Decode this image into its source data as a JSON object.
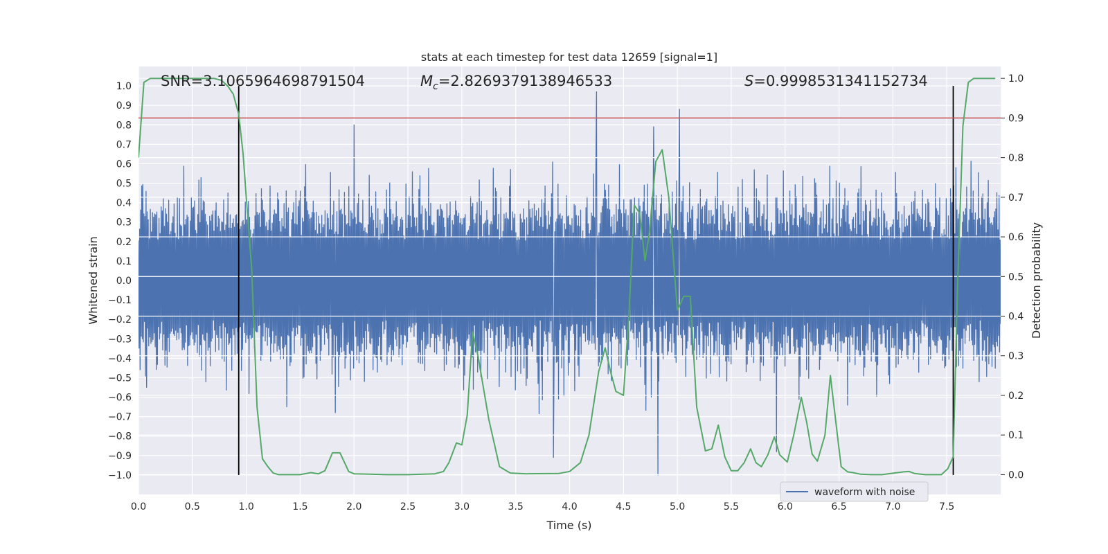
{
  "chart_data": {
    "type": "line",
    "title": "stats at each timestep for test data 12659 [signal=1]",
    "xlabel": "Time (s)",
    "ylabel_left": "Whitened strain",
    "ylabel_right": "Detection probability",
    "xlim": [
      0.0,
      8.0
    ],
    "ylim_left": [
      -1.1,
      1.1
    ],
    "ylim_right": [
      -0.05,
      1.03
    ],
    "x_ticks": [
      0.0,
      0.5,
      1.0,
      1.5,
      2.0,
      2.5,
      3.0,
      3.5,
      4.0,
      4.5,
      5.0,
      5.5,
      6.0,
      6.5,
      7.0,
      7.5
    ],
    "x_tick_labels": [
      "0.0",
      "0.5",
      "1.0",
      "1.5",
      "2.0",
      "2.5",
      "3.0",
      "3.5",
      "4.0",
      "4.5",
      "5.0",
      "5.5",
      "6.0",
      "6.5",
      "7.0",
      "7.5"
    ],
    "left_ticks": [
      1.0,
      0.9,
      0.8,
      0.7,
      0.6,
      0.5,
      0.4,
      0.3,
      0.2,
      0.1,
      0.0,
      -0.1,
      -0.2,
      -0.3,
      -0.4,
      -0.5,
      -0.6,
      -0.7,
      -0.8,
      -0.9,
      -1.0
    ],
    "left_tick_labels": [
      "1.0",
      "0.9",
      "0.8",
      "0.7",
      "0.6",
      "0.5",
      "0.4",
      "0.3",
      "0.2",
      "0.1",
      "0.0",
      "−0.1",
      "−0.2",
      "−0.3",
      "−0.4",
      "−0.5",
      "−0.6",
      "−0.7",
      "−0.8",
      "−0.9",
      "−1.0"
    ],
    "right_ticks": [
      1.0,
      0.9,
      0.8,
      0.7,
      0.6,
      0.5,
      0.4,
      0.3,
      0.2,
      0.1,
      0.0
    ],
    "right_tick_labels": [
      "1.0",
      "0.9",
      "0.8",
      "0.7",
      "0.6",
      "0.5",
      "0.4",
      "0.3",
      "0.2",
      "0.1",
      "0.0"
    ],
    "annotations": {
      "snr": "SNR=3.1065964698791504",
      "mc_symbol": "M",
      "mc_subscript": "c",
      "mc_value": "=2.8269379138946533",
      "s_symbol": "S",
      "s_value": "=0.9998531341152734"
    },
    "legend": {
      "label": "waveform with noise",
      "position": "lower-right"
    },
    "threshold": {
      "axis": "right",
      "value": 0.9,
      "color": "#c44e52"
    },
    "vlines": [
      {
        "x": 0.93,
        "y_from": -1.0,
        "y_to": 1.0
      },
      {
        "x": 7.56,
        "y_from": -1.0,
        "y_to": 1.0
      }
    ],
    "waveform": {
      "name": "waveform with noise",
      "color": "#4c72b0",
      "n_samples": 1600,
      "base_amplitude": 0.37,
      "notable_spikes": [
        {
          "x": 2.0,
          "y": 0.8
        },
        {
          "x": 4.25,
          "y": 0.97
        },
        {
          "x": 4.78,
          "y": 0.79
        },
        {
          "x": 5.02,
          "y": 0.88
        },
        {
          "x": 4.82,
          "y": -1.0
        },
        {
          "x": 3.85,
          "y": -0.91
        },
        {
          "x": 5.92,
          "y": -0.88
        }
      ]
    },
    "probability": {
      "name": "detection probability",
      "color": "#55a868",
      "x": [
        0.0,
        0.05,
        0.11,
        0.2,
        0.5,
        0.7,
        0.77,
        0.83,
        0.88,
        0.93,
        0.97,
        1.0,
        1.05,
        1.1,
        1.15,
        1.2,
        1.25,
        1.3,
        1.5,
        1.6,
        1.67,
        1.73,
        1.8,
        1.87,
        1.95,
        2.0,
        2.15,
        2.3,
        2.5,
        2.75,
        2.83,
        2.88,
        2.95,
        3.0,
        3.05,
        3.1,
        3.15,
        3.25,
        3.35,
        3.45,
        3.6,
        3.9,
        4.0,
        4.1,
        4.18,
        4.27,
        4.33,
        4.38,
        4.43,
        4.5,
        4.55,
        4.6,
        4.65,
        4.7,
        4.74,
        4.8,
        4.86,
        4.92,
        5.0,
        5.06,
        5.12,
        5.18,
        5.26,
        5.32,
        5.38,
        5.44,
        5.5,
        5.56,
        5.62,
        5.68,
        5.73,
        5.78,
        5.84,
        5.9,
        5.95,
        6.02,
        6.08,
        6.15,
        6.2,
        6.25,
        6.3,
        6.37,
        6.42,
        6.48,
        6.52,
        6.58,
        6.63,
        6.7,
        6.8,
        6.9,
        7.1,
        7.15,
        7.2,
        7.3,
        7.45,
        7.51,
        7.56,
        7.6,
        7.65,
        7.7,
        7.75,
        7.8,
        7.95
      ],
      "y": [
        0.8,
        0.99,
        1.0,
        1.0,
        1.0,
        1.0,
        0.995,
        0.98,
        0.96,
        0.91,
        0.81,
        0.7,
        0.52,
        0.17,
        0.04,
        0.02,
        0.004,
        0.0,
        0.0,
        0.005,
        0.002,
        0.01,
        0.055,
        0.055,
        0.008,
        0.002,
        0.001,
        0.0,
        0.0,
        0.002,
        0.008,
        0.03,
        0.08,
        0.075,
        0.15,
        0.36,
        0.3,
        0.14,
        0.02,
        0.004,
        0.002,
        0.003,
        0.008,
        0.03,
        0.1,
        0.26,
        0.32,
        0.26,
        0.21,
        0.2,
        0.4,
        0.68,
        0.66,
        0.54,
        0.61,
        0.79,
        0.82,
        0.7,
        0.415,
        0.45,
        0.45,
        0.17,
        0.06,
        0.065,
        0.125,
        0.045,
        0.01,
        0.01,
        0.03,
        0.065,
        0.03,
        0.02,
        0.05,
        0.095,
        0.05,
        0.032,
        0.1,
        0.195,
        0.132,
        0.052,
        0.034,
        0.1,
        0.25,
        0.11,
        0.02,
        0.007,
        0.005,
        0.001,
        0.0,
        0.0,
        0.007,
        0.008,
        0.003,
        0.0,
        0.0,
        0.015,
        0.045,
        0.48,
        0.88,
        0.99,
        1.0,
        1.0,
        1.0
      ]
    }
  }
}
